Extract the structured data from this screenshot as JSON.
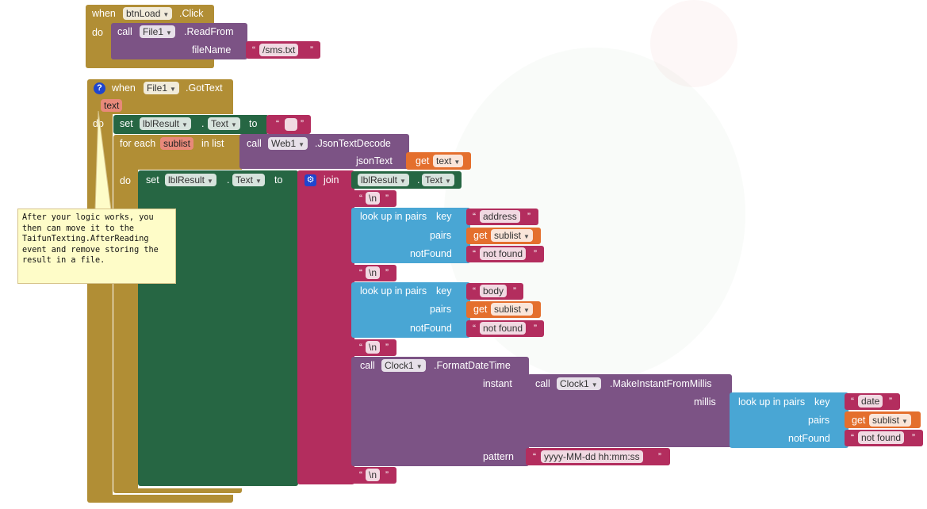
{
  "ev1": {
    "when": "when",
    "component": "btnLoad",
    "event": ".Click",
    "do": "do",
    "call": "call",
    "file_component": "File1",
    "method": ".ReadFrom",
    "param": "fileName",
    "value": "/sms.txt"
  },
  "ev2": {
    "help_icon": "?",
    "when": "when",
    "component": "File1",
    "event": ".GotText",
    "param": "text",
    "do": "do"
  },
  "set1": {
    "set": "set",
    "component": "lblResult",
    "prop": "Text",
    "to": "to",
    "value": " "
  },
  "foreach": {
    "for_each": "for each",
    "var": "sublist",
    "in_list": "in list",
    "do": "do"
  },
  "jsondecode": {
    "call": "call",
    "component": "Web1",
    "method": ".JsonTextDecode",
    "param": "jsonText",
    "get": "get",
    "var": "text"
  },
  "set2": {
    "set": "set",
    "component": "lblResult",
    "prop": "Text",
    "to": "to"
  },
  "join": {
    "label": "join",
    "gear_icon": "⚙"
  },
  "getprop": {
    "component": "lblResult",
    "dot": ".",
    "prop": "Text"
  },
  "nl": "\\n",
  "lookup1": {
    "label": "look up in pairs",
    "key_label": "key",
    "key": "address",
    "pairs_label": "pairs",
    "get": "get",
    "var": "sublist",
    "notfound_label": "notFound",
    "notfound": "not found"
  },
  "lookup2": {
    "label": "look up in pairs",
    "key_label": "key",
    "key": "body",
    "pairs_label": "pairs",
    "get": "get",
    "var": "sublist",
    "notfound_label": "notFound",
    "notfound": "not found"
  },
  "format": {
    "call": "call",
    "component": "Clock1",
    "method": ".FormatDateTime",
    "instant_label": "instant",
    "pattern_label": "pattern",
    "pattern": "yyyy-MM-dd hh:mm:ss"
  },
  "instant": {
    "call": "call",
    "component": "Clock1",
    "method": ".MakeInstantFromMillis",
    "millis_label": "millis"
  },
  "lookup3": {
    "label": "look up in pairs",
    "key_label": "key",
    "key": "date",
    "pairs_label": "pairs",
    "get": "get",
    "var": "sublist",
    "notfound_label": "notFound",
    "notfound": "not found"
  },
  "comment": "After your logic works, you\nthen can move it to the\nTaifunTexting.AfterReading\nevent and remove storing the\nresult in a file.",
  "colors": {
    "event": "#b18e35",
    "call": "#7c5385",
    "text": "#b32d5e",
    "set": "#266643",
    "lookup": "#49a6d4",
    "get": "#e46f2d"
  }
}
